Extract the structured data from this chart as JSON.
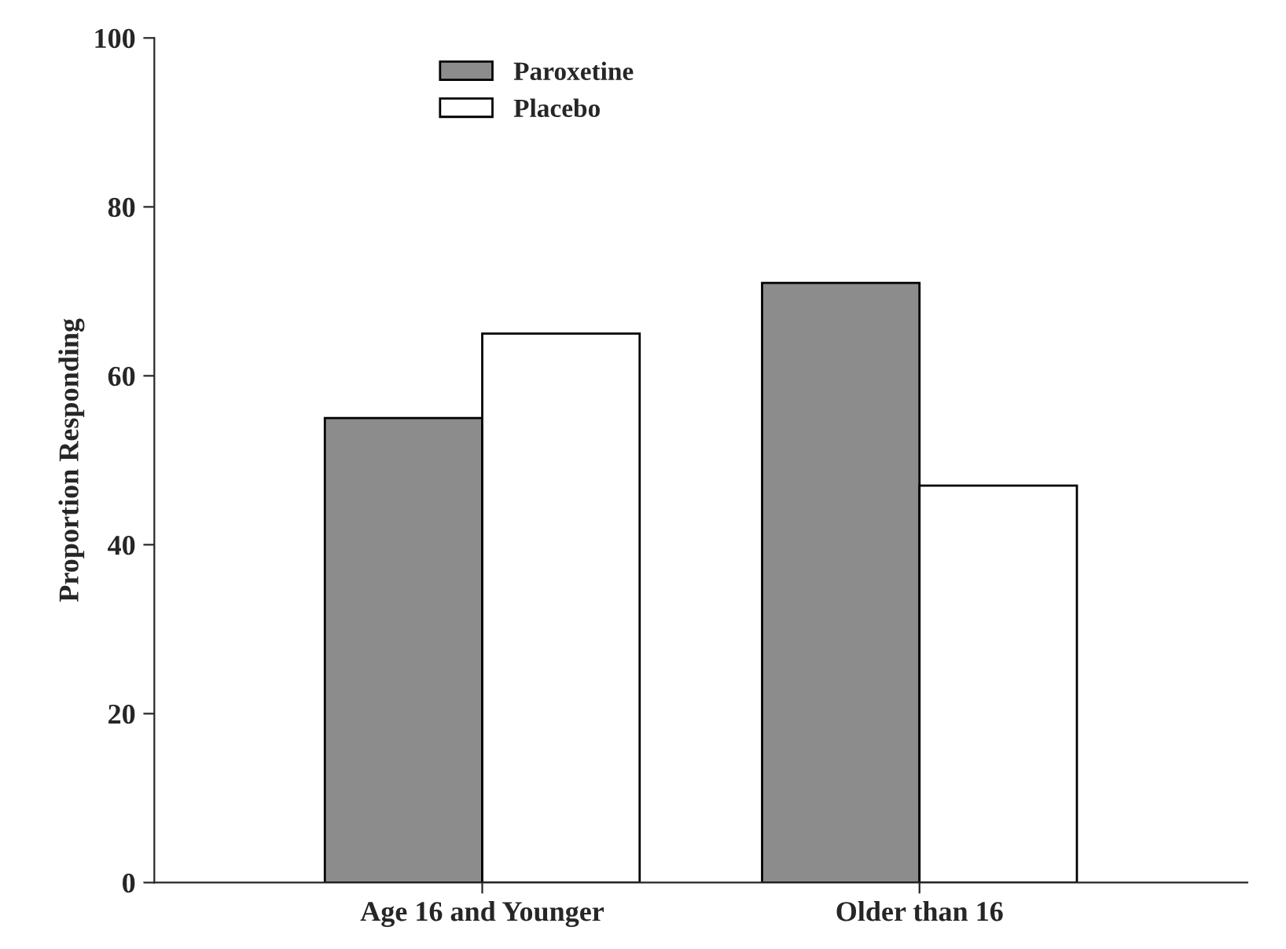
{
  "chart_data": {
    "type": "bar",
    "ylabel": "Proportion Responding",
    "categories": [
      "Age 16 and Younger",
      "Older than 16"
    ],
    "series": [
      {
        "name": "Paroxetine",
        "color": "#8c8c8c",
        "values": [
          55,
          71
        ]
      },
      {
        "name": "Placebo",
        "color": "#ffffff",
        "values": [
          65,
          47
        ]
      }
    ],
    "ylim": [
      0,
      100
    ],
    "yticks": [
      0,
      20,
      40,
      60,
      80,
      100
    ],
    "grid": false,
    "legend": "top"
  }
}
